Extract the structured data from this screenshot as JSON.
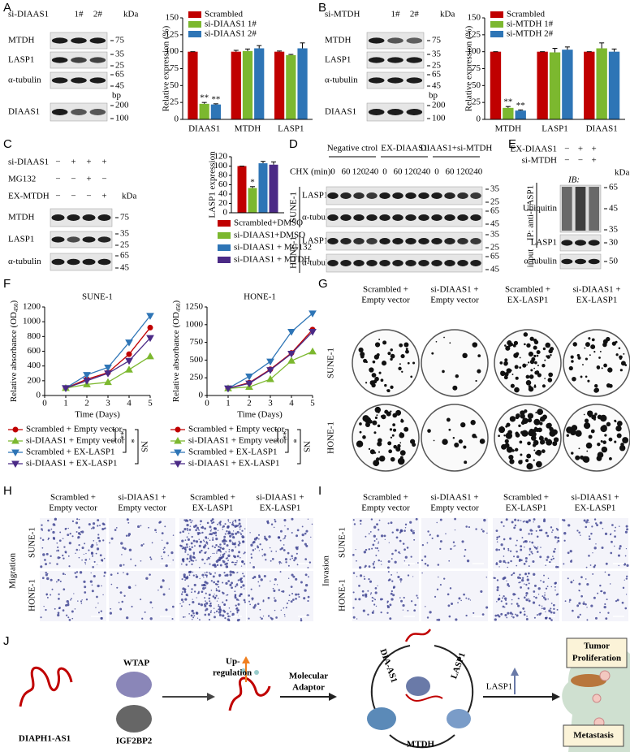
{
  "chart_data": [
    {
      "type": "bar",
      "ylabel": "Relative expression (%)",
      "categories": [
        "DIAAS1",
        "MTDH",
        "LASP1"
      ],
      "series": [
        {
          "name": "Scrambled",
          "color": "#c00000",
          "values": [
            100,
            100,
            100
          ],
          "errors": [
            0,
            2,
            1
          ]
        },
        {
          "name": "si-DIAAS1 1#",
          "color": "#7cb82f",
          "values": [
            23,
            101,
            95
          ],
          "errors": [
            2,
            3,
            1
          ],
          "significance": [
            "**",
            null,
            null
          ]
        },
        {
          "name": "si-DIAAS1 2#",
          "color": "#2e75b6",
          "values": [
            22,
            105,
            105
          ],
          "errors": [
            1,
            4,
            8
          ],
          "significance": [
            "**",
            null,
            null
          ]
        }
      ],
      "ylim": [
        0,
        150
      ],
      "yticks": [
        0,
        25,
        50,
        75,
        100,
        125,
        150
      ]
    },
    {
      "type": "bar",
      "ylabel": "Relative expression (%)",
      "categories": [
        "MTDH",
        "LASP1",
        "DIAAS1"
      ],
      "series": [
        {
          "name": "Scrambled",
          "color": "#c00000",
          "values": [
            100,
            100,
            100
          ],
          "errors": [
            0,
            0,
            0
          ]
        },
        {
          "name": "si-MTDH 1#",
          "color": "#7cb82f",
          "values": [
            17,
            99,
            105
          ],
          "errors": [
            2,
            6,
            8
          ],
          "significance": [
            "**",
            null,
            null
          ]
        },
        {
          "name": "si-MTDH 2#",
          "color": "#2e75b6",
          "values": [
            13,
            103,
            100
          ],
          "errors": [
            1,
            4,
            4
          ],
          "significance": [
            "**",
            null,
            null
          ]
        }
      ],
      "ylim": [
        0,
        150
      ],
      "yticks": [
        0,
        25,
        50,
        75,
        100,
        125,
        150
      ]
    },
    {
      "type": "bar",
      "ylabel": "LASP1 expression",
      "categories": [
        null
      ],
      "series": [
        {
          "name": "Scrambled+DMSO",
          "color": "#c00000",
          "values": [
            100
          ],
          "errors": [
            0
          ]
        },
        {
          "name": "si-DIAAS1+DMSO",
          "color": "#7cb82f",
          "values": [
            53
          ],
          "errors": [
            3
          ],
          "significance": [
            "*"
          ]
        },
        {
          "name": "si-DIAAS1 + MG132",
          "color": "#2e75b6",
          "values": [
            106
          ],
          "errors": [
            4
          ]
        },
        {
          "name": "si-DIAAS1 + MTDH",
          "color": "#4b2a86",
          "values": [
            103
          ],
          "errors": [
            6
          ]
        }
      ],
      "ylim": [
        0,
        120
      ],
      "yticks": [
        0,
        20,
        40,
        60,
        80,
        100,
        120
      ]
    },
    {
      "type": "line",
      "title": "SUNE-1",
      "xlabel": "Time (Days)",
      "ylabel": "Relative absorbance (OD",
      "ylabel_sub": "450",
      "ylabel_end": ")",
      "x": [
        1,
        2,
        3,
        4,
        5
      ],
      "xlim": [
        0,
        5
      ],
      "xticks": [
        0,
        1,
        2,
        3,
        4,
        5
      ],
      "ylim": [
        0,
        1200
      ],
      "yticks": [
        0,
        200,
        400,
        600,
        800,
        1000,
        1200
      ],
      "series": [
        {
          "name": "Scrambled + Empty vector",
          "color": "#c00000",
          "marker": "circle",
          "values": [
            100,
            220,
            310,
            560,
            920
          ]
        },
        {
          "name": "si-DIAAS1 + Empty vector",
          "color": "#7cb82f",
          "marker": "triangle-up",
          "values": [
            100,
            150,
            180,
            350,
            530
          ]
        },
        {
          "name": "Scrambled + EX-LASP1",
          "color": "#2e75b6",
          "marker": "triangle-down",
          "values": [
            100,
            280,
            380,
            720,
            1080
          ]
        },
        {
          "name": "si-DIAAS1 + EX-LASP1",
          "color": "#4b2a86",
          "marker": "triangle-down",
          "values": [
            100,
            200,
            300,
            470,
            780
          ]
        }
      ],
      "significance": [
        "**",
        "*",
        "NS"
      ]
    },
    {
      "type": "line",
      "title": "HONE-1",
      "xlabel": "Time (Days)",
      "ylabel": "Relative absorbance (OD",
      "ylabel_sub": "450",
      "ylabel_end": ")",
      "x": [
        1,
        2,
        3,
        4,
        5
      ],
      "xlim": [
        0,
        5
      ],
      "xticks": [
        0,
        1,
        2,
        3,
        4,
        5
      ],
      "ylim": [
        0,
        1250
      ],
      "yticks": [
        0,
        250,
        500,
        750,
        1000,
        1250
      ],
      "series": [
        {
          "name": "Scrambled + Empty vector",
          "color": "#c00000",
          "marker": "circle",
          "values": [
            100,
            180,
            370,
            600,
            930
          ]
        },
        {
          "name": "si-DIAAS1  + Empty vector",
          "color": "#7cb82f",
          "marker": "triangle-up",
          "values": [
            100,
            120,
            230,
            490,
            620
          ]
        },
        {
          "name": "Scrambled + EX-LASP1",
          "color": "#2e75b6",
          "marker": "triangle-down",
          "values": [
            100,
            270,
            480,
            900,
            1160
          ]
        },
        {
          "name": "si-DIAAS1 + EX-LASP1",
          "color": "#4b2a86",
          "marker": "triangle-down",
          "values": [
            100,
            170,
            360,
            590,
            900
          ]
        }
      ],
      "significance": [
        "**",
        "*",
        "NS"
      ]
    }
  ],
  "letters": [
    "A",
    "B",
    "C",
    "D",
    "E",
    "F",
    "G",
    "H",
    "I",
    "J"
  ],
  "blot_a": {
    "treatment": "si-DIAAS1",
    "lanes": [
      "1#",
      "2#"
    ],
    "unit": "kDa",
    "bp_unit": "bp",
    "rows": [
      {
        "label": "MTDH",
        "markers": [
          "75"
        ]
      },
      {
        "label": "LASP1",
        "markers": [
          "35",
          "25"
        ]
      },
      {
        "label": "α-tubulin",
        "markers": [
          "65",
          "45"
        ]
      },
      {
        "label": "DIAAS1",
        "markers": [
          "200",
          "100"
        ]
      }
    ]
  },
  "blot_b": {
    "treatment": "si-MTDH",
    "lanes": [
      "1#",
      "2#"
    ],
    "unit": "kDa",
    "bp_unit": "bp",
    "rows": [
      {
        "label": "MTDH",
        "markers": [
          "75"
        ]
      },
      {
        "label": "LASP1",
        "markers": [
          "35",
          "25"
        ]
      },
      {
        "label": "α-tubulin",
        "markers": [
          "65",
          "45"
        ]
      },
      {
        "label": "DIAAS1",
        "markers": [
          "200",
          "100"
        ]
      }
    ]
  },
  "blot_c": {
    "treatments": [
      {
        "label": "si-DIAAS1",
        "signs": [
          "−",
          "+",
          "+",
          "+"
        ]
      },
      {
        "label": "MG132",
        "signs": [
          "−",
          "−",
          "+",
          "−"
        ]
      },
      {
        "label": "EX-MTDH",
        "signs": [
          "−",
          "−",
          "−",
          "+"
        ]
      }
    ],
    "unit": "kDa",
    "rows": [
      {
        "label": "MTDH",
        "markers": [
          "75"
        ]
      },
      {
        "label": "LASP1",
        "markers": [
          "35",
          "25"
        ]
      },
      {
        "label": "α-tubulin",
        "markers": [
          "65",
          "45"
        ]
      }
    ]
  },
  "blot_d": {
    "groups": [
      "Negative ctrol",
      "EX-DIAAS1",
      "DIAAS1+si-MTDH"
    ],
    "time_label": "CHX (min)",
    "times": [
      "0",
      "60",
      "120",
      "240",
      "0",
      "60",
      "120",
      "240",
      "0",
      "60",
      "120",
      "240"
    ],
    "cell_lines": [
      "SUNE-1",
      "HONE-1"
    ],
    "rows": [
      {
        "label": "LASP1",
        "markers": [
          "35",
          "25"
        ]
      },
      {
        "label": "α-tubulin",
        "markers": [
          "65",
          "45"
        ]
      }
    ]
  },
  "blot_e": {
    "treatments": [
      {
        "label": "EX-DIAAS1",
        "signs": [
          "−",
          "+",
          "+"
        ]
      },
      {
        "label": "si-MTDH",
        "signs": [
          "−",
          "−",
          "+"
        ]
      }
    ],
    "unit": "kDa",
    "ib": "IB:",
    "ip": "IP: anti-LASP1",
    "input": "input",
    "rows": [
      {
        "label": "Ubiquitin",
        "markers": [
          "65",
          "45",
          "35"
        ]
      },
      {
        "label": "LASP1",
        "markers": [
          "30"
        ]
      },
      {
        "label": "α-tubulin",
        "markers": [
          "50"
        ]
      }
    ]
  },
  "panel_g": {
    "columns": [
      [
        "Scrambled +",
        "Empty vector"
      ],
      [
        "si-DIAAS1 +",
        "Empty vector"
      ],
      [
        "Scrambled +",
        "EX-LASP1"
      ],
      [
        "si-DIAAS1 +",
        "EX-LASP1"
      ]
    ],
    "rows": [
      "SUNE-1",
      "HONE-1"
    ]
  },
  "panel_h": {
    "assay": "Migration",
    "columns": [
      [
        "Scrambled +",
        "Empty vector"
      ],
      [
        "si-DIAAS1 +",
        "Empty vector"
      ],
      [
        "Scrambled +",
        "EX-LASP1"
      ],
      [
        "si-DIAAS1 +",
        "EX-LASP1"
      ]
    ],
    "rows": [
      "SUNE-1",
      "HONE-1"
    ]
  },
  "panel_i": {
    "assay": "Invasion",
    "columns": [
      [
        "Scrambled +",
        "Empty vector"
      ],
      [
        "si-DIAAS1 +",
        "Empty vector"
      ],
      [
        "Scrambled +",
        "EX-LASP1"
      ],
      [
        "si-DIAAS1 +",
        "EX-LASP1"
      ]
    ],
    "rows": [
      "SUNE-1",
      "HONE-1"
    ]
  },
  "panel_j": {
    "lncrna": "DIAPH1-AS1",
    "writer": "WTAP",
    "reader": "IGF2BP2",
    "up": [
      "Up-",
      "regulation"
    ],
    "adaptor": [
      "Molecular",
      "Adaptor"
    ],
    "cycle": {
      "rna": "DIA-AS1",
      "protein": "LASP1",
      "partner": "MTDH"
    },
    "effect": "LASP1",
    "outcome1": [
      "Tumor",
      "Proliferation"
    ],
    "outcome2": "Metastasis"
  }
}
